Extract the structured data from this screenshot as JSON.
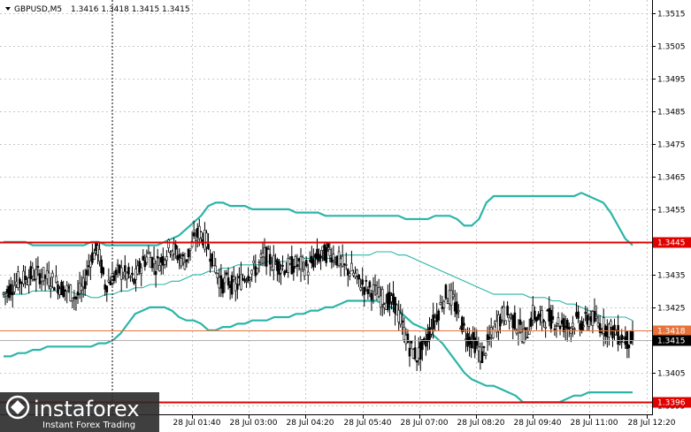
{
  "header": {
    "symbol": "GBPUSD,M5",
    "prices": "1.3416 1.3418 1.3415 1.3415"
  },
  "watermark": {
    "brand": "instaforex",
    "tagline": "Instant Forex Trading"
  },
  "chart_data": {
    "type": "candlestick",
    "symbol": "GBPUSD",
    "timeframe": "M5",
    "ylim": [
      1.3392,
      1.3519
    ],
    "y_ticks": [
      "1.3515",
      "1.3505",
      "1.3495",
      "1.3485",
      "1.3475",
      "1.3465",
      "1.3455",
      "1.3435",
      "1.3425",
      "1.3405",
      "1.3395"
    ],
    "x_ticks": [
      "28 Jul 01:40",
      "28 Jul 03:00",
      "28 Jul 04:20",
      "28 Jul 05:40",
      "28 Jul 07:00",
      "28 Jul 08:20",
      "28 Jul 09:40",
      "28 Jul 11:00",
      "28 Jul 12:20"
    ],
    "horizontal_levels": [
      {
        "label": "1.3445",
        "value": 1.3445,
        "color": "#e00000"
      },
      {
        "label": "1.3396",
        "value": 1.3396,
        "color": "#e00000"
      }
    ],
    "price_marks": [
      {
        "label": "1.3418",
        "value": 1.3418,
        "style": "bid",
        "color": "#e8723a"
      },
      {
        "label": "1.3415",
        "value": 1.3415,
        "style": "current",
        "color": "#000000"
      }
    ],
    "series": [
      {
        "name": "bollinger-upper",
        "values": [
          1.3445,
          1.3445,
          1.3445,
          1.3445,
          1.3444,
          1.3444,
          1.3444,
          1.3444,
          1.3444,
          1.3444,
          1.3444,
          1.3444,
          1.3445,
          1.3445,
          1.3444,
          1.3444,
          1.3444,
          1.3444,
          1.3444,
          1.3444,
          1.3444,
          1.3444,
          1.3445,
          1.3446,
          1.3447,
          1.3449,
          1.3451,
          1.3453,
          1.3456,
          1.3457,
          1.3457,
          1.3456,
          1.3456,
          1.3456,
          1.3455,
          1.3455,
          1.3455,
          1.3455,
          1.3455,
          1.3455,
          1.3454,
          1.3454,
          1.3454,
          1.3454,
          1.3453,
          1.3453,
          1.3453,
          1.3453,
          1.3453,
          1.3453,
          1.3453,
          1.3453,
          1.3453,
          1.3453,
          1.3453,
          1.3452,
          1.3452,
          1.3452,
          1.3452,
          1.3453,
          1.3453,
          1.3453,
          1.3452,
          1.345,
          1.345,
          1.3452,
          1.3457,
          1.3459,
          1.3459,
          1.3459,
          1.3459,
          1.3459,
          1.3459,
          1.3459,
          1.3459,
          1.3459,
          1.3459,
          1.3459,
          1.3459,
          1.346,
          1.3459,
          1.3458,
          1.3457,
          1.3454,
          1.345,
          1.3446,
          1.3444
        ]
      },
      {
        "name": "bollinger-middle",
        "values": [
          1.3428,
          1.3429,
          1.3429,
          1.3429,
          1.343,
          1.343,
          1.343,
          1.343,
          1.343,
          1.343,
          1.3429,
          1.3429,
          1.3428,
          1.3428,
          1.3429,
          1.3429,
          1.343,
          1.343,
          1.3431,
          1.3431,
          1.3432,
          1.3432,
          1.3432,
          1.3433,
          1.3433,
          1.3434,
          1.3435,
          1.3435,
          1.3436,
          1.3436,
          1.3437,
          1.3437,
          1.3438,
          1.3438,
          1.3438,
          1.3438,
          1.3439,
          1.3439,
          1.3439,
          1.3439,
          1.344,
          1.344,
          1.344,
          1.344,
          1.344,
          1.344,
          1.3441,
          1.3441,
          1.3441,
          1.3441,
          1.3441,
          1.3442,
          1.3442,
          1.3442,
          1.3441,
          1.3441,
          1.344,
          1.3439,
          1.3438,
          1.3437,
          1.3436,
          1.3435,
          1.3434,
          1.3433,
          1.3432,
          1.3431,
          1.343,
          1.3429,
          1.3429,
          1.3429,
          1.3429,
          1.3429,
          1.3428,
          1.3428,
          1.3428,
          1.3427,
          1.3427,
          1.3426,
          1.3426,
          1.3425,
          1.3424,
          1.3423,
          1.3422,
          1.3422,
          1.3422,
          1.3422,
          1.3421
        ]
      },
      {
        "name": "bollinger-lower",
        "values": [
          1.341,
          1.341,
          1.3411,
          1.3411,
          1.3412,
          1.3412,
          1.3413,
          1.3413,
          1.3413,
          1.3413,
          1.3413,
          1.3413,
          1.3413,
          1.3414,
          1.3414,
          1.3415,
          1.3417,
          1.342,
          1.3423,
          1.3424,
          1.3425,
          1.3425,
          1.3425,
          1.3424,
          1.3422,
          1.3421,
          1.3421,
          1.342,
          1.3418,
          1.3418,
          1.3419,
          1.3419,
          1.342,
          1.342,
          1.3421,
          1.3421,
          1.3421,
          1.3422,
          1.3422,
          1.3422,
          1.3423,
          1.3423,
          1.3424,
          1.3424,
          1.3425,
          1.3425,
          1.3426,
          1.3427,
          1.3427,
          1.3427,
          1.3427,
          1.3427,
          1.3426,
          1.3425,
          1.3424,
          1.3422,
          1.342,
          1.3419,
          1.3418,
          1.3416,
          1.3414,
          1.3411,
          1.3408,
          1.3405,
          1.3403,
          1.3402,
          1.3401,
          1.3401,
          1.34,
          1.3399,
          1.3398,
          1.3396,
          1.3396,
          1.3396,
          1.3396,
          1.3396,
          1.3396,
          1.3397,
          1.3398,
          1.3398,
          1.3399,
          1.3399,
          1.3399,
          1.3399,
          1.3399,
          1.3399,
          1.3399
        ]
      },
      {
        "name": "price-close",
        "values": [
          1.3429,
          1.3431,
          1.3433,
          1.3434,
          1.3435,
          1.3435,
          1.3434,
          1.3433,
          1.3431,
          1.343,
          1.3428,
          1.3431,
          1.344,
          1.3443,
          1.3432,
          1.3434,
          1.3436,
          1.3435,
          1.3433,
          1.3438,
          1.3441,
          1.3438,
          1.344,
          1.3444,
          1.3441,
          1.3439,
          1.3444,
          1.3448,
          1.3445,
          1.3439,
          1.3432,
          1.3433,
          1.3431,
          1.3434,
          1.3436,
          1.3437,
          1.3441,
          1.3439,
          1.3438,
          1.3437,
          1.3438,
          1.3438,
          1.3437,
          1.344,
          1.3441,
          1.3442,
          1.344,
          1.3437,
          1.3436,
          1.3433,
          1.3431,
          1.343,
          1.3428,
          1.3427,
          1.3426,
          1.3419,
          1.3413,
          1.341,
          1.3413,
          1.3419,
          1.3424,
          1.3429,
          1.3427,
          1.3421,
          1.3416,
          1.3414,
          1.341,
          1.3415,
          1.342,
          1.3423,
          1.3422,
          1.3419,
          1.3416,
          1.3423,
          1.3421,
          1.3422,
          1.3421,
          1.342,
          1.3419,
          1.3421,
          1.342,
          1.3422,
          1.342,
          1.3419,
          1.3418,
          1.3416,
          1.3415
        ]
      }
    ]
  }
}
